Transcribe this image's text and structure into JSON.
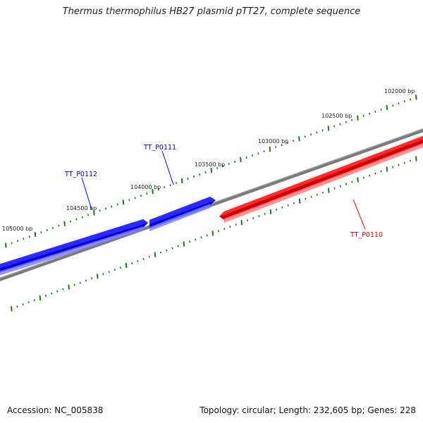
{
  "title": "Thermus thermophilus HB27 plasmid pTT27, complete sequence",
  "footer": {
    "accession": "Accession: NC_005838",
    "summary": "Topology: circular; Length: 232,605 bp; Genes: 228"
  },
  "ruler": {
    "labels": [
      "102000 bp",
      "102500 bp",
      "103000 bp",
      "103500 bp",
      "104000 bp",
      "104500 bp",
      "105000 bp"
    ]
  },
  "genes": [
    {
      "name": "TT_P0110",
      "strand": "reverse",
      "color": "#ff0000"
    },
    {
      "name": "TT_P0111",
      "strand": "forward",
      "color": "#0000ff"
    },
    {
      "name": "TT_P0112",
      "strand": "forward",
      "color": "#0000ff"
    }
  ],
  "colors": {
    "backbone": "#808080",
    "forward_gene": "#0000ff",
    "reverse_gene": "#ff0000",
    "ticks": "#1a7a1a"
  }
}
